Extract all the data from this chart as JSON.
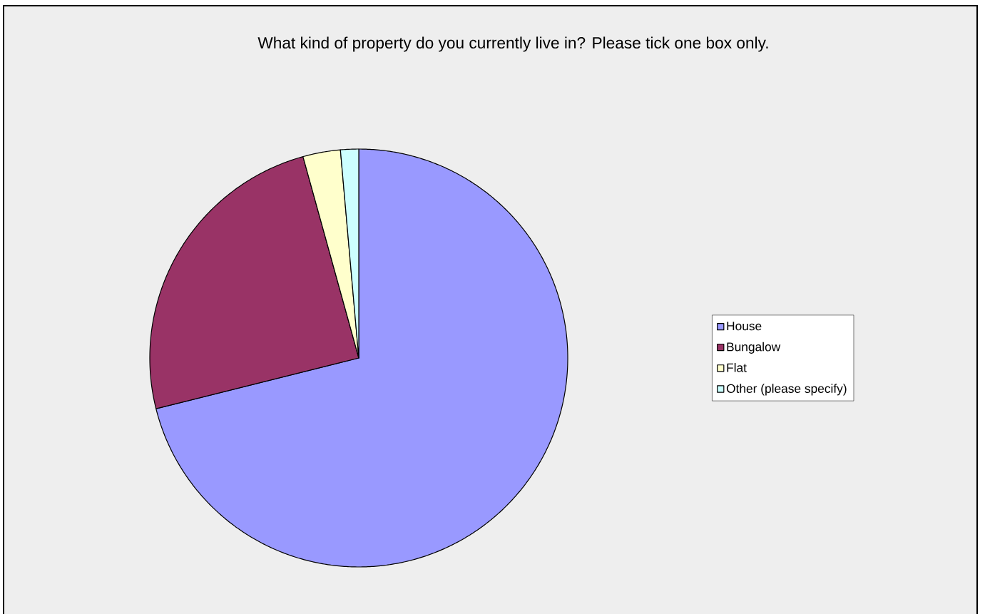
{
  "chart_data": {
    "type": "pie",
    "title": "What kind of property do you currently live in? Please tick one box only.",
    "categories": [
      "House",
      "Bungalow",
      "Flat",
      "Other (please specify)"
    ],
    "values": [
      71.1,
      24.6,
      2.9,
      1.4
    ],
    "colors": [
      "#9999ff",
      "#993366",
      "#ffffcc",
      "#ccffff"
    ],
    "legend": "right"
  }
}
